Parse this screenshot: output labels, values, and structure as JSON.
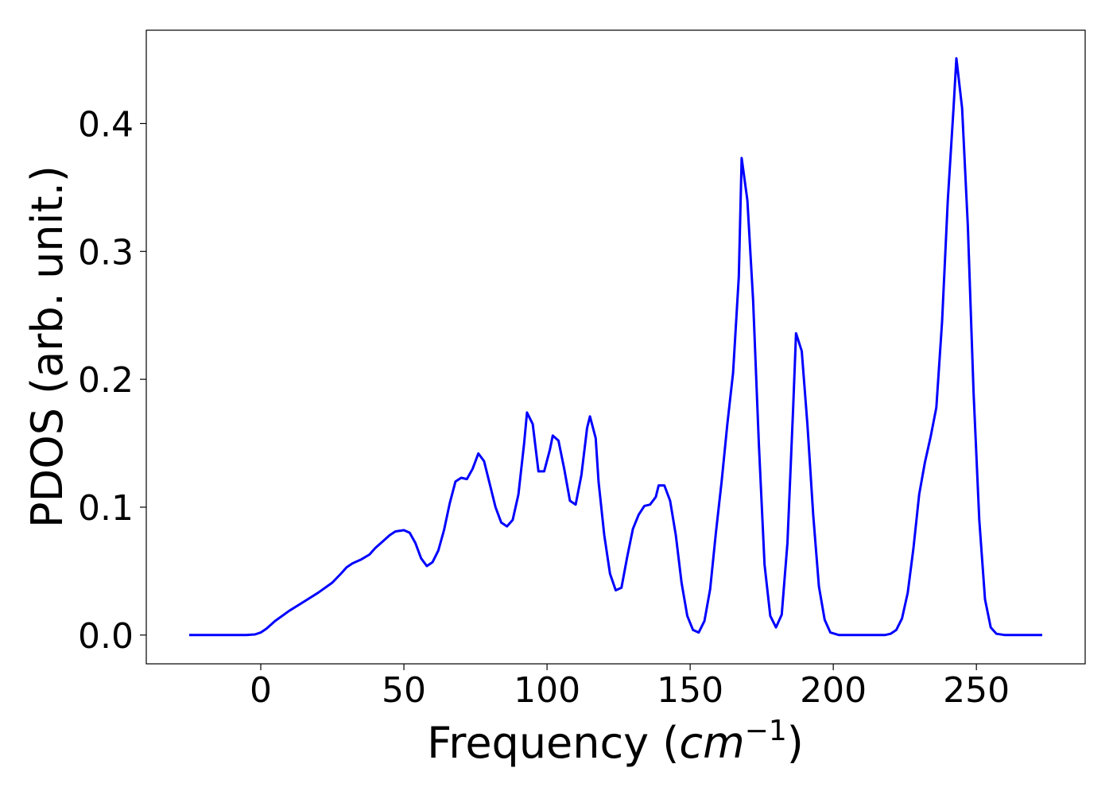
{
  "chart_data": {
    "type": "line",
    "xlabel": "Frequency (",
    "xlabel_math": "cm",
    "xlabel_sup": "−1",
    "xlabel_close": ")",
    "ylabel": "PDOS (arb. unit.)",
    "xlim": [
      -40,
      288
    ],
    "ylim": [
      -0.0225,
      0.473
    ],
    "xticks": [
      0,
      50,
      100,
      150,
      200,
      250
    ],
    "xtick_labels": [
      "0",
      "50",
      "100",
      "150",
      "200",
      "250"
    ],
    "yticks": [
      0.0,
      0.1,
      0.2,
      0.3,
      0.4
    ],
    "ytick_labels": [
      "0.0",
      "0.1",
      "0.2",
      "0.3",
      "0.4"
    ],
    "grid": false,
    "series": [
      {
        "color": "#0000ff",
        "x": [
          -25,
          -20,
          -15,
          -10,
          -5,
          -2,
          0,
          2,
          5,
          10,
          15,
          20,
          25,
          28,
          30,
          32,
          35,
          38,
          40,
          43,
          45,
          47,
          50,
          52,
          54,
          56,
          58,
          60,
          62,
          64,
          66,
          68,
          70,
          72,
          74,
          76,
          78,
          80,
          82,
          84,
          86,
          88,
          90,
          92,
          93,
          95,
          97,
          99,
          101,
          102,
          104,
          106,
          108,
          110,
          112,
          114,
          115,
          117,
          118,
          120,
          122,
          124,
          126,
          128,
          130,
          132,
          134,
          136,
          138,
          139,
          141,
          143,
          145,
          147,
          149,
          151,
          153,
          155,
          157,
          159,
          161,
          163,
          165,
          167,
          168,
          170,
          172,
          174,
          176,
          178,
          180,
          182,
          184,
          186,
          187,
          189,
          191,
          193,
          195,
          197,
          199,
          202,
          205,
          210,
          215,
          218,
          220,
          222,
          224,
          226,
          228,
          230,
          232,
          234,
          236,
          238,
          240,
          242,
          243,
          245,
          247,
          249,
          251,
          253,
          255,
          257,
          260,
          265,
          273
        ],
        "y": [
          0.0,
          0.0,
          0.0,
          0.0,
          0.0,
          0.0005,
          0.002,
          0.005,
          0.011,
          0.019,
          0.026,
          0.033,
          0.041,
          0.048,
          0.053,
          0.056,
          0.059,
          0.063,
          0.068,
          0.074,
          0.078,
          0.081,
          0.082,
          0.08,
          0.072,
          0.06,
          0.054,
          0.057,
          0.066,
          0.082,
          0.103,
          0.12,
          0.123,
          0.122,
          0.13,
          0.142,
          0.136,
          0.118,
          0.1,
          0.088,
          0.085,
          0.09,
          0.11,
          0.15,
          0.174,
          0.165,
          0.128,
          0.128,
          0.145,
          0.156,
          0.152,
          0.13,
          0.105,
          0.102,
          0.125,
          0.162,
          0.171,
          0.154,
          0.12,
          0.078,
          0.048,
          0.035,
          0.037,
          0.061,
          0.083,
          0.094,
          0.101,
          0.102,
          0.108,
          0.117,
          0.117,
          0.105,
          0.078,
          0.041,
          0.015,
          0.004,
          0.002,
          0.011,
          0.036,
          0.08,
          0.12,
          0.165,
          0.205,
          0.28,
          0.373,
          0.34,
          0.262,
          0.15,
          0.055,
          0.015,
          0.006,
          0.016,
          0.072,
          0.178,
          0.236,
          0.222,
          0.164,
          0.094,
          0.038,
          0.012,
          0.002,
          0.0,
          0.0,
          0.0,
          0.0,
          0.0,
          0.001,
          0.004,
          0.013,
          0.033,
          0.068,
          0.11,
          0.135,
          0.155,
          0.178,
          0.245,
          0.34,
          0.412,
          0.451,
          0.412,
          0.32,
          0.19,
          0.09,
          0.028,
          0.006,
          0.001,
          0.0,
          0.0,
          0.0
        ]
      }
    ]
  }
}
